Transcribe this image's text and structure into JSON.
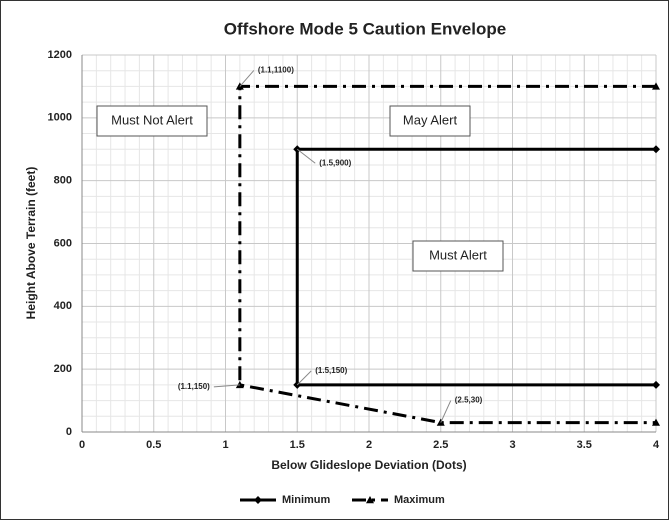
{
  "chart_data": {
    "type": "line",
    "title": "Offshore Mode 5 Caution Envelope",
    "xlabel": "Below Glideslope Deviation (Dots)",
    "ylabel": "Height Above Terrain (feet)",
    "xlim": [
      0,
      4
    ],
    "xticks": [
      0,
      0.5,
      1,
      1.5,
      2,
      2.5,
      3,
      3.5,
      4
    ],
    "ylim": [
      0,
      1200
    ],
    "yticks": [
      0,
      200,
      400,
      600,
      800,
      1000,
      1200
    ],
    "grid": true,
    "legend": "bottom",
    "series": [
      {
        "name": "Minimum",
        "color": "#000000",
        "marker": "diamond",
        "dash": "solid",
        "x": [
          4,
          1.5,
          1.5,
          4
        ],
        "values": [
          900,
          900,
          150,
          150
        ]
      },
      {
        "name": "Maximum",
        "color": "#000000",
        "marker": "triangle",
        "dash": "dashdot",
        "x": [
          4,
          1.1,
          1.1,
          2.5,
          4
        ],
        "values": [
          1100,
          1100,
          150,
          30,
          30
        ]
      }
    ],
    "annotations": [
      "(1.1,1100)",
      "(1.5,900)",
      "(1.5,150)",
      "(1.1,150)",
      "(2.5,30)"
    ],
    "regions": [
      "Must Not Alert",
      "May Alert",
      "Must Alert"
    ]
  }
}
